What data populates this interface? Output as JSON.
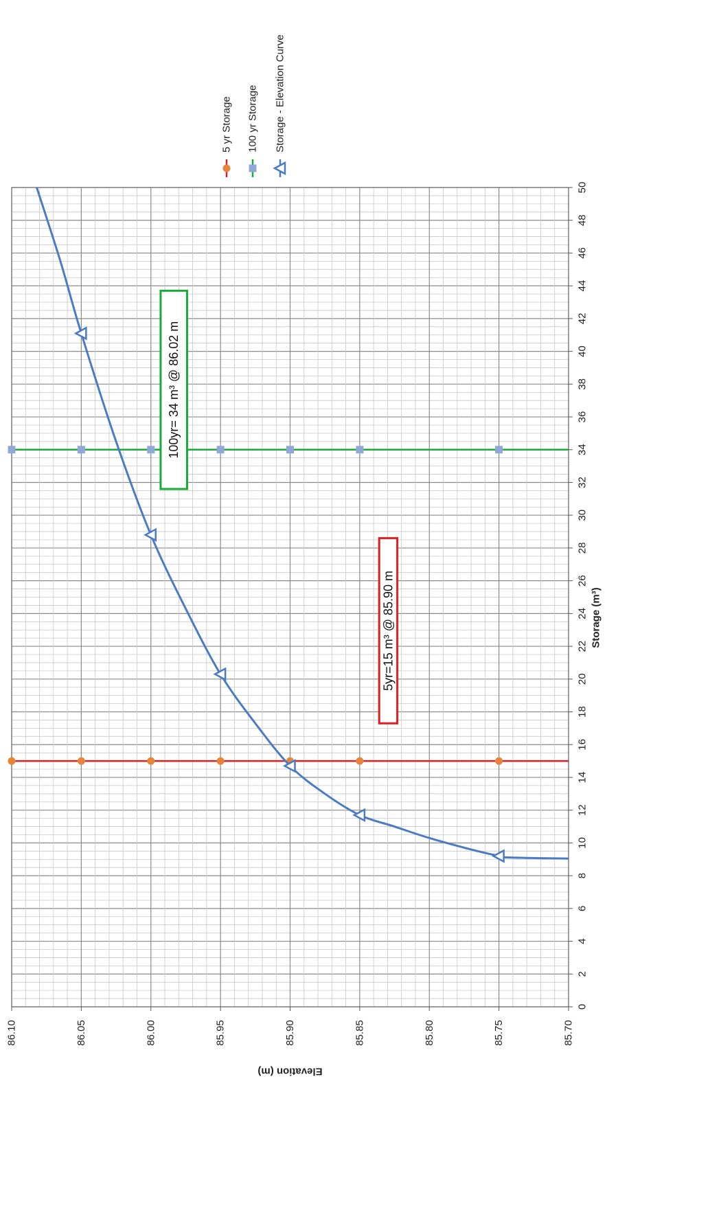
{
  "chart_data": {
    "type": "line",
    "title": "",
    "xlabel": "Storage (m³)",
    "ylabel": "Elevation (m)",
    "xlim": [
      0,
      50
    ],
    "ylim": [
      85.7,
      86.1
    ],
    "x_ticks": [
      "0",
      "2",
      "4",
      "6",
      "8",
      "10",
      "12",
      "14",
      "16",
      "18",
      "20",
      "22",
      "24",
      "26",
      "28",
      "30",
      "32",
      "34",
      "36",
      "38",
      "40",
      "42",
      "44",
      "46",
      "48",
      "50"
    ],
    "y_ticks": [
      "85.70",
      "85.75",
      "85.80",
      "85.85",
      "85.90",
      "85.95",
      "86.00",
      "86.05",
      "86.10"
    ],
    "grid": true,
    "orientation": "rotated 90° (read with page turned clockwise)",
    "legend_position": "right",
    "series": [
      {
        "name": "5 yr Storage",
        "color": "#e02020",
        "marker_color": "#e8833a",
        "marker": "circle",
        "points": [
          [
            15,
            85.75
          ],
          [
            15,
            85.85
          ],
          [
            15,
            85.9
          ],
          [
            15,
            85.95
          ],
          [
            15,
            86.0
          ],
          [
            15,
            86.05
          ],
          [
            15,
            86.1
          ]
        ]
      },
      {
        "name": "100 yr Storage",
        "color": "#1aaa3a",
        "marker_color": "#8fa8d8",
        "marker": "square",
        "points": [
          [
            34,
            85.75
          ],
          [
            34,
            85.85
          ],
          [
            34,
            85.9
          ],
          [
            34,
            85.95
          ],
          [
            34,
            86.0
          ],
          [
            34,
            86.05
          ],
          [
            34,
            86.1
          ]
        ]
      },
      {
        "name": "Storage - Elevation Curve",
        "color": "#4a7bc4",
        "marker": "triangle",
        "points": [
          [
            9.1,
            85.7
          ],
          [
            9.2,
            85.75
          ],
          [
            11.7,
            85.85
          ],
          [
            14.7,
            85.9
          ],
          [
            20.3,
            85.95
          ],
          [
            28.8,
            86.0
          ],
          [
            41.1,
            86.05
          ],
          [
            50.0,
            86.082
          ]
        ],
        "curve": [
          [
            9.05,
            85.7
          ],
          [
            9.07,
            85.72
          ],
          [
            9.12,
            85.745
          ],
          [
            9.2,
            85.75
          ],
          [
            9.6,
            85.77
          ],
          [
            10.3,
            85.8
          ],
          [
            11.0,
            85.825
          ],
          [
            11.7,
            85.85
          ],
          [
            13.0,
            85.875
          ],
          [
            14.7,
            85.9
          ],
          [
            17.3,
            85.925
          ],
          [
            20.3,
            85.95
          ],
          [
            24.3,
            85.975
          ],
          [
            28.8,
            86.0
          ],
          [
            34.5,
            86.025
          ],
          [
            41.1,
            86.05
          ],
          [
            45.5,
            86.065
          ],
          [
            50.0,
            86.082
          ]
        ],
        "markers": [
          [
            9.2,
            85.75
          ],
          [
            11.7,
            85.85
          ],
          [
            14.7,
            85.9
          ],
          [
            20.3,
            85.95
          ],
          [
            28.8,
            86.0
          ],
          [
            41.1,
            86.05
          ]
        ]
      }
    ],
    "annotations": [
      {
        "text": "5yr=15 m³ @ 85.90  m",
        "color": "#e02020",
        "x_range": [
          17.3,
          28.6
        ],
        "y_range": [
          85.823,
          85.836
        ]
      },
      {
        "text": "100yr= 34 m³ @ 86.02 m",
        "color": "#1aaa3a",
        "x_range": [
          31.6,
          43.7
        ],
        "y_range": [
          85.974,
          85.993
        ]
      }
    ]
  }
}
